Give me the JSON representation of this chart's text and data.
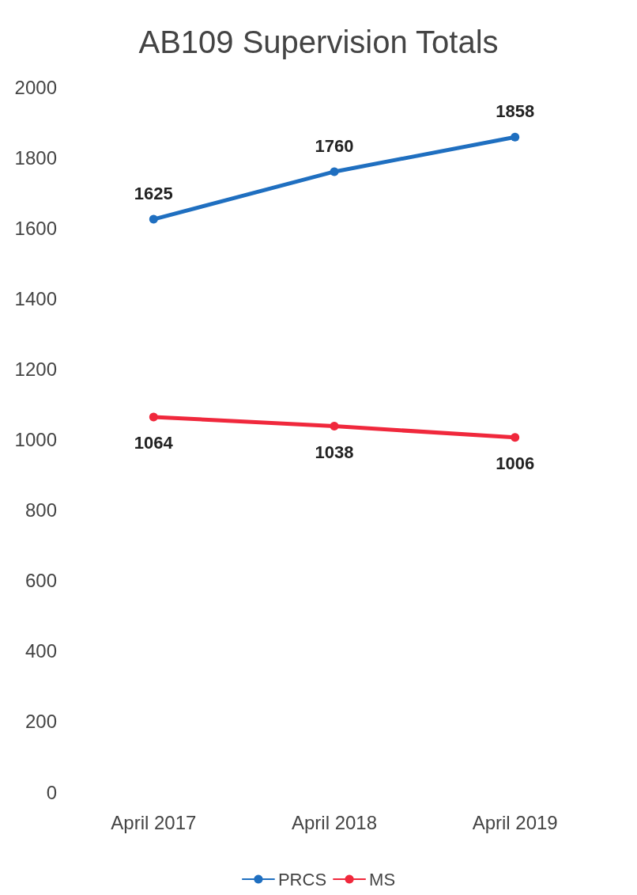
{
  "chart_data": {
    "type": "line",
    "title": "AB109 Supervision Totals",
    "categories": [
      "April 2017",
      "April 2018",
      "April 2019"
    ],
    "series": [
      {
        "name": "PRCS",
        "color": "#1f6fc0",
        "values": [
          1625,
          1760,
          1858
        ]
      },
      {
        "name": "MS",
        "color": "#f0283c",
        "values": [
          1064,
          1038,
          1006
        ]
      }
    ],
    "ylim": [
      0,
      2000
    ],
    "yticks": [
      0,
      200,
      400,
      600,
      800,
      1000,
      1200,
      1400,
      1600,
      1800,
      2000
    ],
    "data_labels": true,
    "legend": "bottom",
    "marker": "circle",
    "grid": false
  }
}
